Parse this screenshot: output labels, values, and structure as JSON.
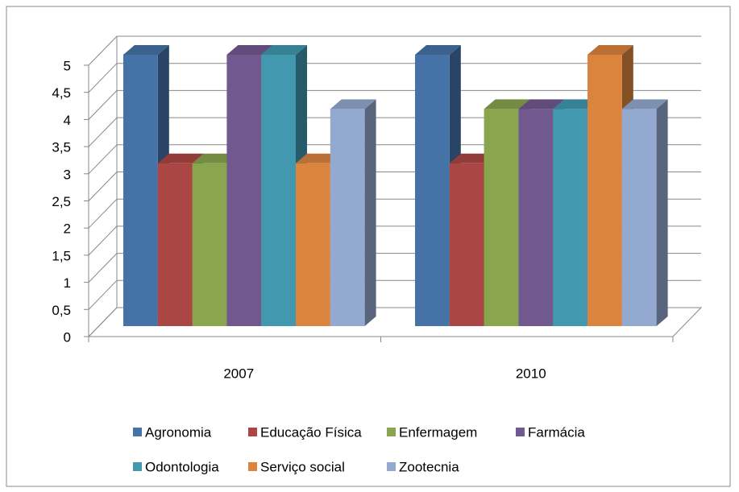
{
  "chart_data": {
    "type": "bar3d",
    "categories": [
      "2007",
      "2010"
    ],
    "series": [
      {
        "name": "Agronomia",
        "color": "#4572a7",
        "values": [
          5,
          5
        ]
      },
      {
        "name": "Educação Física",
        "color": "#aa4643",
        "values": [
          3,
          3
        ]
      },
      {
        "name": "Enfermagem",
        "color": "#89a54e",
        "values": [
          3,
          4
        ]
      },
      {
        "name": "Farmácia",
        "color": "#71588f",
        "values": [
          5,
          4
        ]
      },
      {
        "name": "Odontologia",
        "color": "#4198af",
        "values": [
          5,
          4
        ]
      },
      {
        "name": "Serviço social",
        "color": "#db843d",
        "values": [
          3,
          5
        ]
      },
      {
        "name": "Zootecnia",
        "color": "#93a9cf",
        "values": [
          4,
          4
        ]
      }
    ],
    "ylim": [
      0,
      5
    ],
    "yticks": [
      0,
      {
        "value": 0.5,
        "label": "0,5"
      },
      1,
      {
        "value": 1.5,
        "label": "1,5"
      },
      2,
      {
        "value": 2.5,
        "label": "2,5"
      },
      3,
      {
        "value": 3.5,
        "label": "3,5"
      },
      4,
      {
        "value": 4.5,
        "label": "4,5"
      },
      5
    ],
    "grid": true,
    "legend": "bottom"
  }
}
